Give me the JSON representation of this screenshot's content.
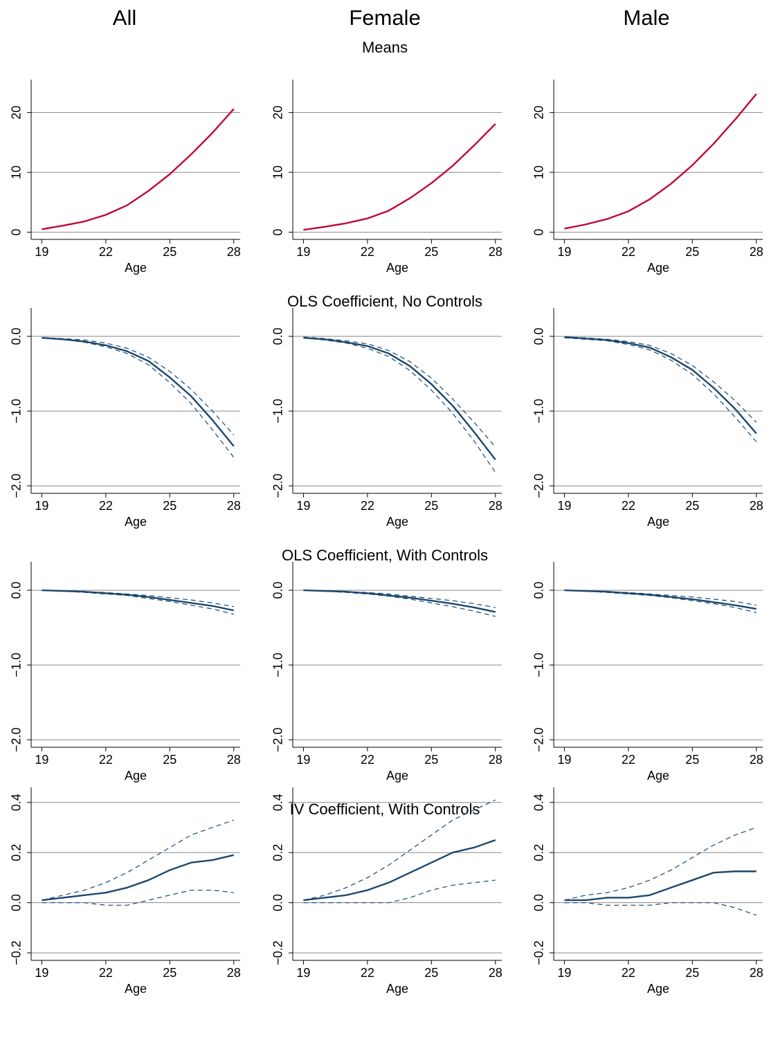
{
  "column_titles": [
    "All",
    "Female",
    "Male"
  ],
  "row_titles": [
    "Means",
    "OLS Coefficient, No Controls",
    "OLS Coefficient, With Controls",
    "IV Coefficient, With Controls"
  ],
  "chart_data": [
    {
      "type": "line",
      "x": [
        19,
        20,
        21,
        22,
        23,
        24,
        25,
        26,
        27,
        28
      ],
      "xlabel": "Age",
      "xlim": [
        18.5,
        28.3
      ],
      "xticks": [
        19,
        22,
        25,
        28
      ],
      "ylim": [
        -1.2,
        25.5
      ],
      "yticks": [
        0,
        10,
        20
      ],
      "grid": true,
      "series": [
        {
          "color": "#c10534",
          "dashed": false,
          "values": [
            0.5,
            1.1,
            1.8,
            2.9,
            4.5,
            6.9,
            9.7,
            13.0,
            16.6,
            20.6
          ]
        }
      ]
    },
    {
      "type": "line",
      "x": [
        19,
        20,
        21,
        22,
        23,
        24,
        25,
        26,
        27,
        28
      ],
      "xlabel": "Age",
      "xlim": [
        18.5,
        28.3
      ],
      "xticks": [
        19,
        22,
        25,
        28
      ],
      "ylim": [
        -1.2,
        25.5
      ],
      "yticks": [
        0,
        10,
        20
      ],
      "grid": true,
      "series": [
        {
          "color": "#c10534",
          "dashed": false,
          "values": [
            0.4,
            0.9,
            1.5,
            2.3,
            3.6,
            5.7,
            8.2,
            11.1,
            14.5,
            18.1
          ]
        }
      ]
    },
    {
      "type": "line",
      "x": [
        19,
        20,
        21,
        22,
        23,
        24,
        25,
        26,
        27,
        28
      ],
      "xlabel": "Age",
      "xlim": [
        18.5,
        28.3
      ],
      "xticks": [
        19,
        22,
        25,
        28
      ],
      "ylim": [
        -1.2,
        25.5
      ],
      "yticks": [
        0,
        10,
        20
      ],
      "grid": true,
      "series": [
        {
          "color": "#c10534",
          "dashed": false,
          "values": [
            0.6,
            1.3,
            2.2,
            3.5,
            5.5,
            8.1,
            11.2,
            14.8,
            18.8,
            23.1
          ]
        }
      ]
    },
    {
      "type": "line",
      "x": [
        19,
        20,
        21,
        22,
        23,
        24,
        25,
        26,
        27,
        28
      ],
      "xlabel": "Age",
      "xlim": [
        18.5,
        28.3
      ],
      "xticks": [
        19,
        22,
        25,
        28
      ],
      "ylim": [
        -2.1,
        0.38
      ],
      "yticks": [
        {
          "value": 0,
          "label": "0.0"
        },
        {
          "value": -1,
          "label": "−1.0"
        },
        {
          "value": -2,
          "label": "−2.0"
        }
      ],
      "grid": true,
      "series": [
        {
          "color": "#1a476f",
          "dashed": false,
          "values": [
            -0.02,
            -0.04,
            -0.07,
            -0.12,
            -0.2,
            -0.33,
            -0.55,
            -0.8,
            -1.12,
            -1.47
          ]
        },
        {
          "color": "#1a476f",
          "dashed": true,
          "values": [
            -0.02,
            -0.03,
            -0.05,
            -0.09,
            -0.16,
            -0.28,
            -0.47,
            -0.71,
            -1.0,
            -1.32
          ]
        },
        {
          "color": "#1a476f",
          "dashed": true,
          "values": [
            -0.02,
            -0.04,
            -0.08,
            -0.14,
            -0.23,
            -0.38,
            -0.62,
            -0.9,
            -1.25,
            -1.62
          ]
        }
      ]
    },
    {
      "type": "line",
      "x": [
        19,
        20,
        21,
        22,
        23,
        24,
        25,
        26,
        27,
        28
      ],
      "xlabel": "Age",
      "xlim": [
        18.5,
        28.3
      ],
      "xticks": [
        19,
        22,
        25,
        28
      ],
      "ylim": [
        -2.1,
        0.38
      ],
      "yticks": [
        {
          "value": 0,
          "label": "0.0"
        },
        {
          "value": -1,
          "label": "−1.0"
        },
        {
          "value": -2,
          "label": "−2.0"
        }
      ],
      "grid": true,
      "series": [
        {
          "color": "#1a476f",
          "dashed": false,
          "values": [
            -0.02,
            -0.04,
            -0.08,
            -0.13,
            -0.23,
            -0.4,
            -0.64,
            -0.93,
            -1.28,
            -1.65
          ]
        },
        {
          "color": "#1a476f",
          "dashed": true,
          "values": [
            -0.01,
            -0.03,
            -0.06,
            -0.1,
            -0.19,
            -0.34,
            -0.56,
            -0.84,
            -1.15,
            -1.48
          ]
        },
        {
          "color": "#1a476f",
          "dashed": true,
          "values": [
            -0.02,
            -0.05,
            -0.09,
            -0.16,
            -0.27,
            -0.46,
            -0.72,
            -1.03,
            -1.4,
            -1.82
          ]
        }
      ]
    },
    {
      "type": "line",
      "x": [
        19,
        20,
        21,
        22,
        23,
        24,
        25,
        26,
        27,
        28
      ],
      "xlabel": "Age",
      "xlim": [
        18.5,
        28.3
      ],
      "xticks": [
        19,
        22,
        25,
        28
      ],
      "ylim": [
        -2.1,
        0.38
      ],
      "yticks": [
        {
          "value": 0,
          "label": "0.0"
        },
        {
          "value": -1,
          "label": "−1.0"
        },
        {
          "value": -2,
          "label": "−2.0"
        }
      ],
      "grid": true,
      "series": [
        {
          "color": "#1a476f",
          "dashed": false,
          "values": [
            -0.01,
            -0.03,
            -0.05,
            -0.09,
            -0.15,
            -0.28,
            -0.45,
            -0.69,
            -0.97,
            -1.3
          ]
        },
        {
          "color": "#1a476f",
          "dashed": true,
          "values": [
            -0.01,
            -0.02,
            -0.04,
            -0.07,
            -0.12,
            -0.23,
            -0.39,
            -0.61,
            -0.86,
            -1.15
          ]
        },
        {
          "color": "#1a476f",
          "dashed": true,
          "values": [
            -0.02,
            -0.04,
            -0.06,
            -0.11,
            -0.18,
            -0.32,
            -0.51,
            -0.77,
            -1.08,
            -1.41
          ]
        }
      ]
    },
    {
      "type": "line",
      "x": [
        19,
        20,
        21,
        22,
        23,
        24,
        25,
        26,
        27,
        28
      ],
      "xlabel": "Age",
      "xlim": [
        18.5,
        28.3
      ],
      "xticks": [
        19,
        22,
        25,
        28
      ],
      "ylim": [
        -2.1,
        0.38
      ],
      "yticks": [
        {
          "value": 0,
          "label": "0.0"
        },
        {
          "value": -1,
          "label": "−1.0"
        },
        {
          "value": -2,
          "label": "−2.0"
        }
      ],
      "grid": true,
      "series": [
        {
          "color": "#1a476f",
          "dashed": false,
          "values": [
            0,
            -0.01,
            -0.02,
            -0.04,
            -0.06,
            -0.09,
            -0.13,
            -0.17,
            -0.21,
            -0.27
          ]
        },
        {
          "color": "#1a476f",
          "dashed": true,
          "values": [
            0,
            -0.01,
            -0.02,
            -0.03,
            -0.05,
            -0.07,
            -0.1,
            -0.13,
            -0.17,
            -0.22
          ]
        },
        {
          "color": "#1a476f",
          "dashed": true,
          "values": [
            0,
            -0.01,
            -0.03,
            -0.05,
            -0.07,
            -0.11,
            -0.15,
            -0.2,
            -0.25,
            -0.32
          ]
        }
      ]
    },
    {
      "type": "line",
      "x": [
        19,
        20,
        21,
        22,
        23,
        24,
        25,
        26,
        27,
        28
      ],
      "xlabel": "Age",
      "xlim": [
        18.5,
        28.3
      ],
      "xticks": [
        19,
        22,
        25,
        28
      ],
      "ylim": [
        -2.1,
        0.38
      ],
      "yticks": [
        {
          "value": 0,
          "label": "0.0"
        },
        {
          "value": -1,
          "label": "−1.0"
        },
        {
          "value": -2,
          "label": "−2.0"
        }
      ],
      "grid": true,
      "series": [
        {
          "color": "#1a476f",
          "dashed": false,
          "values": [
            0,
            -0.01,
            -0.02,
            -0.04,
            -0.07,
            -0.1,
            -0.14,
            -0.18,
            -0.23,
            -0.29
          ]
        },
        {
          "color": "#1a476f",
          "dashed": true,
          "values": [
            0,
            -0.01,
            -0.02,
            -0.03,
            -0.05,
            -0.08,
            -0.11,
            -0.14,
            -0.18,
            -0.23
          ]
        },
        {
          "color": "#1a476f",
          "dashed": true,
          "values": [
            0,
            -0.01,
            -0.03,
            -0.05,
            -0.08,
            -0.12,
            -0.17,
            -0.22,
            -0.28,
            -0.35
          ]
        }
      ]
    },
    {
      "type": "line",
      "x": [
        19,
        20,
        21,
        22,
        23,
        24,
        25,
        26,
        27,
        28
      ],
      "xlabel": "Age",
      "xlim": [
        18.5,
        28.3
      ],
      "xticks": [
        19,
        22,
        25,
        28
      ],
      "ylim": [
        -2.1,
        0.38
      ],
      "yticks": [
        {
          "value": 0,
          "label": "0.0"
        },
        {
          "value": -1,
          "label": "−1.0"
        },
        {
          "value": -2,
          "label": "−2.0"
        }
      ],
      "grid": true,
      "series": [
        {
          "color": "#1a476f",
          "dashed": false,
          "values": [
            0,
            -0.01,
            -0.02,
            -0.04,
            -0.06,
            -0.09,
            -0.12,
            -0.16,
            -0.2,
            -0.25
          ]
        },
        {
          "color": "#1a476f",
          "dashed": true,
          "values": [
            0,
            -0.01,
            -0.02,
            -0.03,
            -0.05,
            -0.07,
            -0.09,
            -0.12,
            -0.15,
            -0.2
          ]
        },
        {
          "color": "#1a476f",
          "dashed": true,
          "values": [
            0,
            -0.01,
            -0.03,
            -0.05,
            -0.07,
            -0.1,
            -0.14,
            -0.18,
            -0.23,
            -0.3
          ]
        }
      ]
    },
    {
      "type": "line",
      "x": [
        19,
        20,
        21,
        22,
        23,
        24,
        25,
        26,
        27,
        28
      ],
      "xlabel": "Age",
      "xlim": [
        18.5,
        28.3
      ],
      "xticks": [
        19,
        22,
        25,
        28
      ],
      "ylim": [
        -0.23,
        0.46
      ],
      "yticks": [
        {
          "value": 0.4,
          "label": "0.4"
        },
        {
          "value": 0.2,
          "label": "0.2"
        },
        {
          "value": 0,
          "label": "0.0"
        },
        {
          "value": -0.2,
          "label": "−0.2"
        }
      ],
      "grid": true,
      "series": [
        {
          "color": "#1a476f",
          "dashed": false,
          "values": [
            0.01,
            0.02,
            0.03,
            0.04,
            0.06,
            0.09,
            0.13,
            0.16,
            0.17,
            0.19
          ]
        },
        {
          "color": "#1a476f",
          "dashed": true,
          "values": [
            0.01,
            0.03,
            0.05,
            0.08,
            0.12,
            0.17,
            0.22,
            0.27,
            0.3,
            0.33
          ]
        },
        {
          "color": "#1a476f",
          "dashed": true,
          "values": [
            0,
            0,
            0,
            -0.01,
            -0.01,
            0.01,
            0.03,
            0.05,
            0.05,
            0.04
          ]
        }
      ]
    },
    {
      "type": "line",
      "x": [
        19,
        20,
        21,
        22,
        23,
        24,
        25,
        26,
        27,
        28
      ],
      "xlabel": "Age",
      "xlim": [
        18.5,
        28.3
      ],
      "xticks": [
        19,
        22,
        25,
        28
      ],
      "ylim": [
        -0.23,
        0.46
      ],
      "yticks": [
        {
          "value": 0.4,
          "label": "0.4"
        },
        {
          "value": 0.2,
          "label": "0.2"
        },
        {
          "value": 0,
          "label": "0.0"
        },
        {
          "value": -0.2,
          "label": "−0.2"
        }
      ],
      "grid": true,
      "series": [
        {
          "color": "#1a476f",
          "dashed": false,
          "values": [
            0.01,
            0.02,
            0.03,
            0.05,
            0.08,
            0.12,
            0.16,
            0.2,
            0.22,
            0.25
          ]
        },
        {
          "color": "#1a476f",
          "dashed": true,
          "values": [
            0.01,
            0.03,
            0.06,
            0.1,
            0.15,
            0.21,
            0.27,
            0.33,
            0.37,
            0.41
          ]
        },
        {
          "color": "#1a476f",
          "dashed": true,
          "values": [
            0,
            0,
            0,
            0,
            0,
            0.02,
            0.05,
            0.07,
            0.08,
            0.09
          ]
        }
      ]
    },
    {
      "type": "line",
      "x": [
        19,
        20,
        21,
        22,
        23,
        24,
        25,
        26,
        27,
        28
      ],
      "xlabel": "Age",
      "xlim": [
        18.5,
        28.3
      ],
      "xticks": [
        19,
        22,
        25,
        28
      ],
      "ylim": [
        -0.23,
        0.46
      ],
      "yticks": [
        {
          "value": 0.4,
          "label": "0.4"
        },
        {
          "value": 0.2,
          "label": "0.2"
        },
        {
          "value": 0,
          "label": "0.0"
        },
        {
          "value": -0.2,
          "label": "−0.2"
        }
      ],
      "grid": true,
      "series": [
        {
          "color": "#1a476f",
          "dashed": false,
          "values": [
            0.01,
            0.01,
            0.02,
            0.02,
            0.03,
            0.06,
            0.09,
            0.12,
            0.125,
            0.125
          ]
        },
        {
          "color": "#1a476f",
          "dashed": true,
          "values": [
            0.01,
            0.03,
            0.04,
            0.06,
            0.09,
            0.13,
            0.18,
            0.23,
            0.27,
            0.3
          ]
        },
        {
          "color": "#1a476f",
          "dashed": true,
          "values": [
            0,
            0,
            -0.01,
            -0.01,
            -0.01,
            0,
            0,
            0,
            -0.02,
            -0.05
          ]
        }
      ]
    }
  ]
}
